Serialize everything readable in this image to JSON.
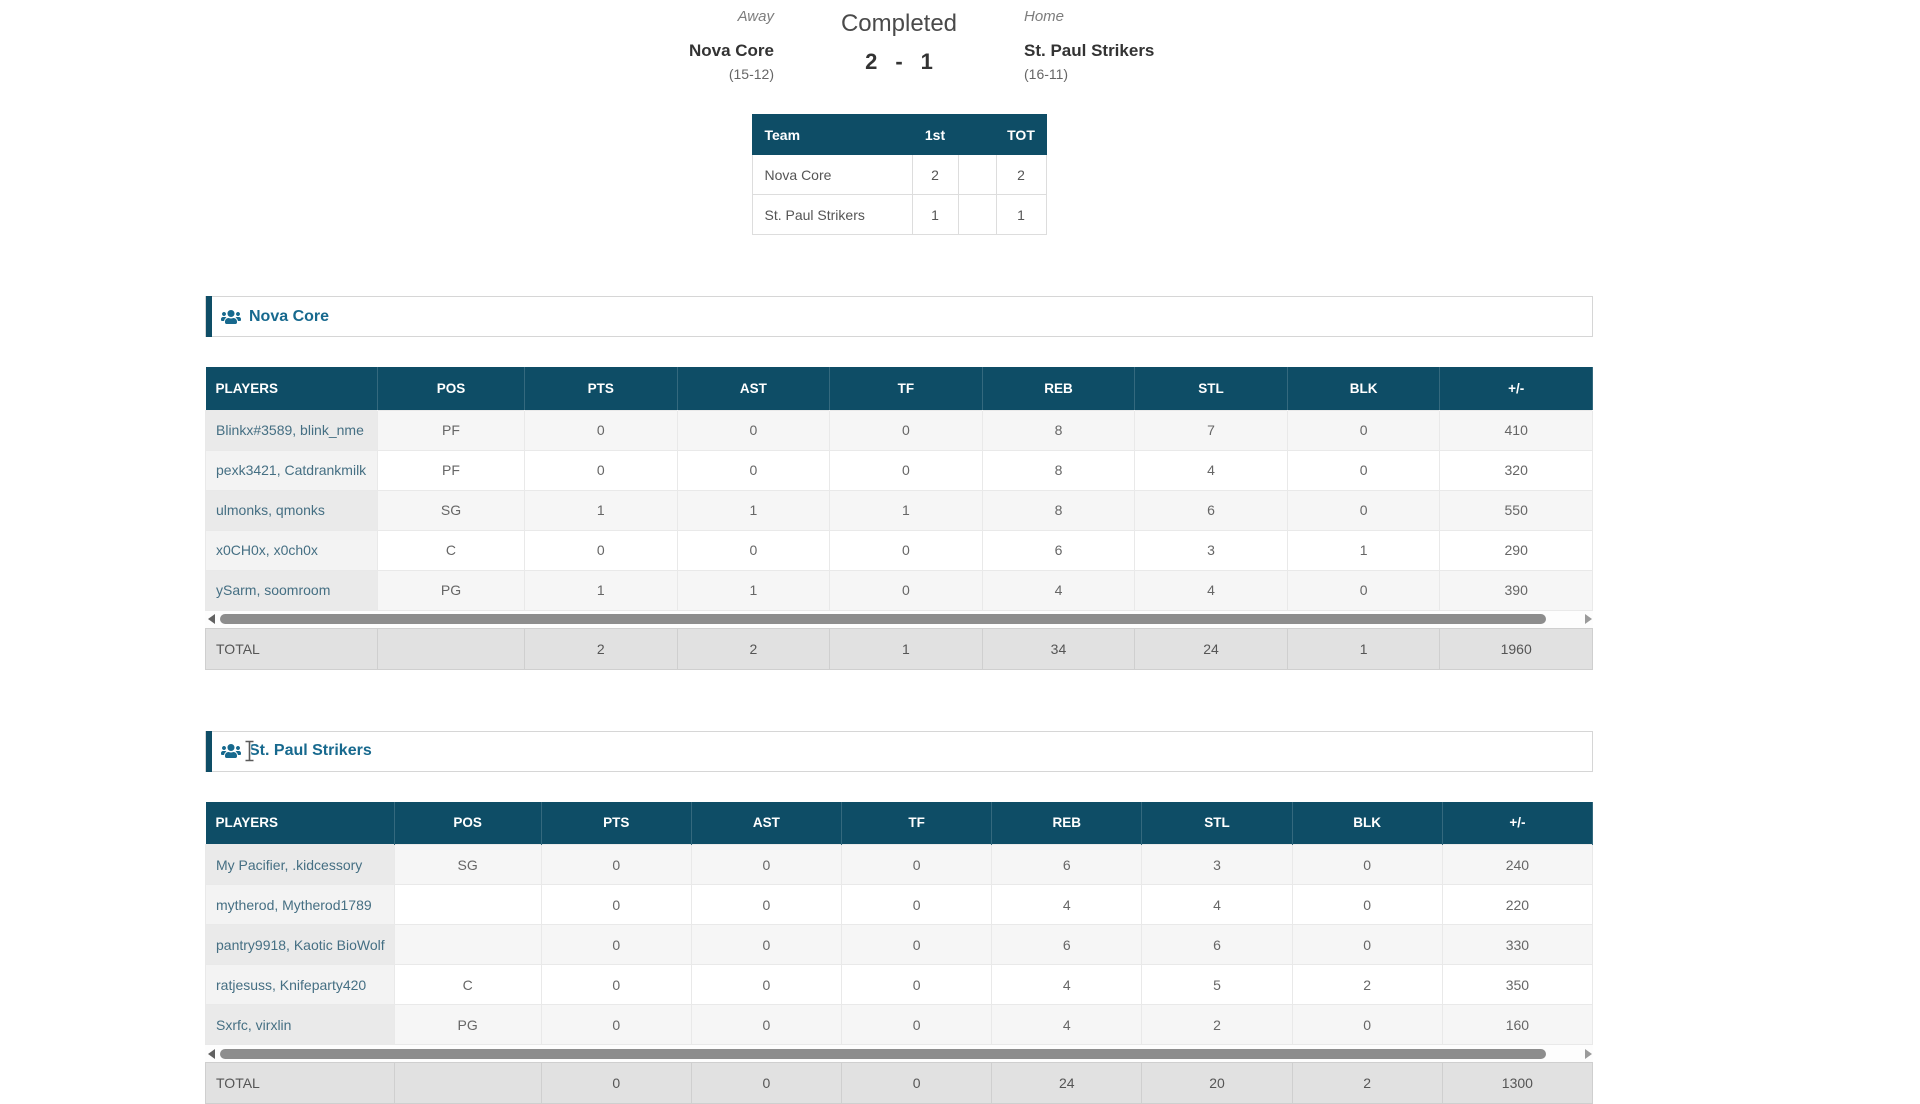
{
  "match": {
    "status": "Completed",
    "score": {
      "away": "2",
      "separator": "-",
      "home": "1"
    },
    "away": {
      "label": "Away",
      "name": "Nova Core",
      "record": "(15-12)"
    },
    "home": {
      "label": "Home",
      "name": "St. Paul Strikers",
      "record": "(16-11)"
    }
  },
  "score_table": {
    "headers": [
      "Team",
      "1st",
      "",
      "TOT"
    ],
    "rows": [
      [
        "Nova Core",
        "2",
        "",
        "2"
      ],
      [
        "St. Paul Strikers",
        "1",
        "",
        "1"
      ]
    ]
  },
  "sections": [
    {
      "title": "Nova Core",
      "icon": "users-icon",
      "columns": [
        "PLAYERS",
        "POS",
        "PTS",
        "AST",
        "TF",
        "REB",
        "STL",
        "BLK",
        "+/-"
      ],
      "rows": [
        [
          "Blinkx#3589, blink_nme",
          "PF",
          "0",
          "0",
          "0",
          "8",
          "7",
          "0",
          "410"
        ],
        [
          "pexk3421, Catdrankmilk",
          "PF",
          "0",
          "0",
          "0",
          "8",
          "4",
          "0",
          "320"
        ],
        [
          "ulmonks, qmonks",
          "SG",
          "1",
          "1",
          "1",
          "8",
          "6",
          "0",
          "550"
        ],
        [
          "x0CH0x, x0ch0x",
          "C",
          "0",
          "0",
          "0",
          "6",
          "3",
          "1",
          "290"
        ],
        [
          "ySarm, soomroom",
          "PG",
          "1",
          "1",
          "0",
          "4",
          "4",
          "0",
          "390"
        ]
      ],
      "total": [
        "TOTAL",
        "",
        "2",
        "2",
        "1",
        "34",
        "24",
        "1",
        "1960"
      ]
    },
    {
      "title": "St. Paul Strikers",
      "icon": "users-icon",
      "columns": [
        "PLAYERS",
        "POS",
        "PTS",
        "AST",
        "TF",
        "REB",
        "STL",
        "BLK",
        "+/-"
      ],
      "rows": [
        [
          "My Pacifier, .kidcessory",
          "SG",
          "0",
          "0",
          "0",
          "6",
          "3",
          "0",
          "240"
        ],
        [
          "mytherod, Mytherod1789",
          "",
          "0",
          "0",
          "0",
          "4",
          "4",
          "0",
          "220"
        ],
        [
          "pantry9918, Kaotic BioWolf",
          "",
          "0",
          "0",
          "0",
          "6",
          "6",
          "0",
          "330"
        ],
        [
          "ratjesuss, Knifeparty420",
          "C",
          "0",
          "0",
          "0",
          "4",
          "5",
          "2",
          "350"
        ],
        [
          "Sxrfc, virxlin",
          "PG",
          "0",
          "0",
          "0",
          "4",
          "2",
          "0",
          "160"
        ]
      ],
      "total": [
        "TOTAL",
        "",
        "0",
        "0",
        "0",
        "24",
        "20",
        "2",
        "1300"
      ]
    }
  ],
  "colors": {
    "table_header_bg": "#0e4d66",
    "section_title": "#17698e",
    "accent_bar": "#0e4d66",
    "total_row_bg": "#e1e1e1",
    "scroll_thumb": "#8d8d8d"
  }
}
